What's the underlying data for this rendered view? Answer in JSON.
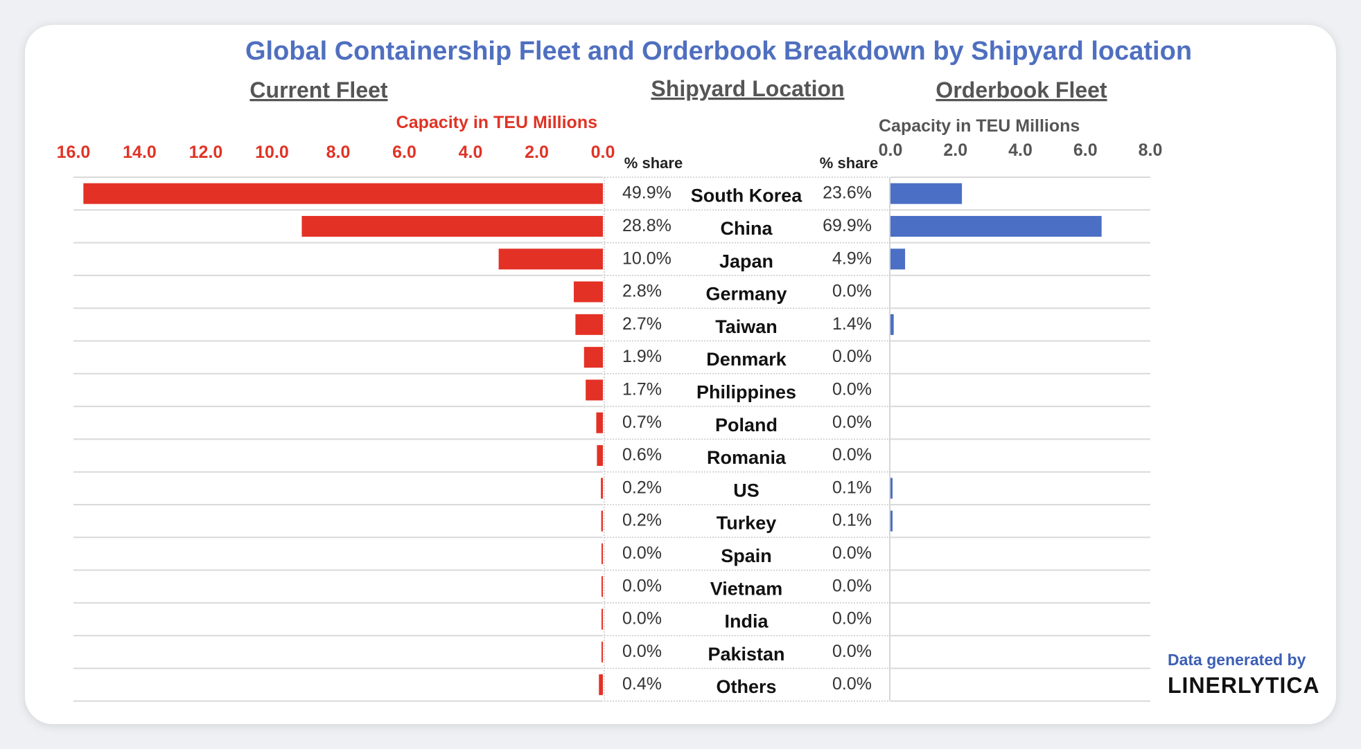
{
  "colors": {
    "fleet": "#e43126",
    "orderbook": "#4b6fc4",
    "title": "#4f6fbf"
  },
  "header": {
    "title": "Global Containership Fleet and Orderbook Breakdown by Shipyard location",
    "current_fleet": "Current Fleet",
    "shipyard_location": "Shipyard Location",
    "orderbook_fleet": "Orderbook Fleet"
  },
  "left_axis": {
    "label": "Capacity in TEU Millions",
    "ticks": [
      "16.0",
      "14.0",
      "12.0",
      "10.0",
      "8.0",
      "6.0",
      "4.0",
      "2.0",
      "0.0"
    ]
  },
  "right_axis": {
    "label": "Capacity in TEU Millions",
    "ticks": [
      "0.0",
      "2.0",
      "4.0",
      "6.0",
      "8.0"
    ]
  },
  "share_header": "% share",
  "credit": {
    "line1": "Data generated by",
    "brand": "LINERLYTICA"
  },
  "chart_data": {
    "type": "bar",
    "title": "Global Containership Fleet and Orderbook Breakdown by Shipyard location",
    "categories": [
      "South Korea",
      "China",
      "Japan",
      "Germany",
      "Taiwan",
      "Denmark",
      "Philippines",
      "Poland",
      "Romania",
      "US",
      "Turkey",
      "Spain",
      "Vietnam",
      "India",
      "Pakistan",
      "Others"
    ],
    "series": [
      {
        "name": "Current Fleet",
        "unit": "TEU Millions",
        "xlim": [
          0,
          16
        ],
        "values": [
          15.7,
          9.1,
          3.15,
          0.88,
          0.83,
          0.57,
          0.52,
          0.2,
          0.18,
          0.06,
          0.05,
          0.01,
          0.01,
          0.01,
          0.01,
          0.12
        ],
        "share_labels": [
          "49.9%",
          "28.8%",
          "10.0%",
          "2.8%",
          "2.7%",
          "1.9%",
          "1.7%",
          "0.7%",
          "0.6%",
          "0.2%",
          "0.2%",
          "0.0%",
          "0.0%",
          "0.0%",
          "0.0%",
          "0.4%"
        ]
      },
      {
        "name": "Orderbook Fleet",
        "unit": "TEU Millions",
        "xlim": [
          0,
          8
        ],
        "values": [
          2.2,
          6.5,
          0.45,
          0.0,
          0.1,
          0.0,
          0.0,
          0.0,
          0.0,
          0.01,
          0.01,
          0.0,
          0.0,
          0.0,
          0.0,
          0.0
        ],
        "share_labels": [
          "23.6%",
          "69.9%",
          "4.9%",
          "0.0%",
          "1.4%",
          "0.0%",
          "0.0%",
          "0.0%",
          "0.0%",
          "0.1%",
          "0.1%",
          "0.0%",
          "0.0%",
          "0.0%",
          "0.0%",
          "0.0%"
        ]
      }
    ]
  }
}
